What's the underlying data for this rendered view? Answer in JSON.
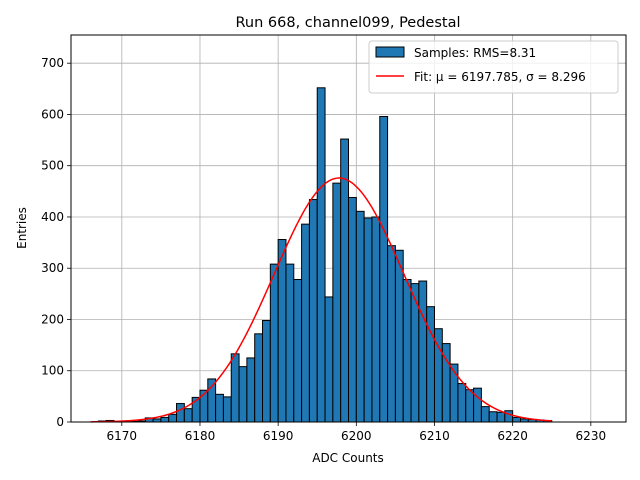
{
  "chart_data": {
    "type": "bar",
    "title": "Run 668, channel099, Pedestal",
    "xlabel": "ADC Counts",
    "ylabel": "Entries",
    "xlim": [
      6163.5,
      6234.5
    ],
    "ylim": [
      0,
      755
    ],
    "xticks": [
      6170,
      6180,
      6190,
      6200,
      6210,
      6220,
      6230
    ],
    "yticks": [
      0,
      100,
      200,
      300,
      400,
      500,
      600,
      700
    ],
    "grid": true,
    "legend_position": "top-right",
    "bin_start": 6166,
    "bin_width": 1,
    "series": [
      {
        "name": "Samples: RMS=8.31",
        "kind": "histogram",
        "color": "#1f77b4",
        "edgecolor": "#000000",
        "values": [
          0,
          2,
          3,
          0,
          1,
          1,
          2,
          8,
          6,
          9,
          15,
          36,
          26,
          48,
          62,
          84,
          54,
          49,
          133,
          108,
          125,
          172,
          198,
          308,
          356,
          308,
          278,
          386,
          434,
          652,
          244,
          466,
          552,
          438,
          411,
          398,
          400,
          596,
          344,
          335,
          278,
          270,
          275,
          225,
          182,
          153,
          113,
          75,
          63,
          66,
          30,
          20,
          19,
          22,
          9,
          6,
          5,
          4,
          3
        ]
      },
      {
        "name": "Fit: μ = 6197.785, σ = 8.296",
        "kind": "line",
        "color": "#ff0000",
        "mu": 6197.785,
        "sigma": 8.296,
        "amplitude": 476,
        "x_range": [
          6166,
          6225
        ]
      }
    ]
  }
}
